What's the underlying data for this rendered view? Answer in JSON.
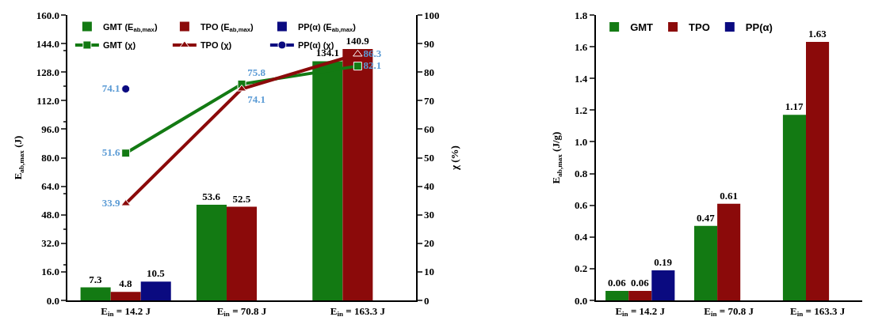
{
  "chart_data": [
    {
      "type": "bar",
      "categories": [
        "E$_{in}$ = 14.2 J",
        "E$_{in}$ = 70.8 J",
        "E$_{in}$ = 163.3 J"
      ],
      "ylabel": "E$_{ab,max}$ (J)",
      "y2label": "χ (%)",
      "series": [
        {
          "name": "GMT (E$_{ab,max}$)",
          "color": "#137a13",
          "values": [
            7.3,
            53.6,
            134.1
          ]
        },
        {
          "name": "TPO (E$_{ab,max}$)",
          "color": "#8b0a0a",
          "values": [
            4.8,
            52.5,
            140.9
          ]
        },
        {
          "name": "PP(α) (E$_{ab,max}$)",
          "color": "#0a0a80",
          "values": [
            10.5,
            null,
            null
          ]
        },
        {
          "name": "GMT (χ)",
          "type": "line",
          "axis": "y2",
          "marker": "square",
          "color": "#137a13",
          "values": [
            51.6,
            75.8,
            82.1
          ]
        },
        {
          "name": "TPO (χ)",
          "type": "line",
          "axis": "y2",
          "marker": "triangle",
          "color": "#8b0a0a",
          "values": [
            33.9,
            74.1,
            86.3
          ]
        },
        {
          "name": "PP(α) (χ)",
          "type": "line",
          "axis": "y2",
          "marker": "circle",
          "color": "#0a0a80",
          "values": [
            74.1,
            null,
            null
          ]
        }
      ],
      "ylim": [
        0,
        160
      ],
      "yticks": [
        {
          "value": 0,
          "label": "0.0"
        },
        {
          "value": 16,
          "label": "16.0"
        },
        {
          "value": 32,
          "label": "32.0"
        },
        {
          "value": 48,
          "label": "48.0"
        },
        {
          "value": 64,
          "label": "64.0"
        },
        {
          "value": 80,
          "label": "80.0"
        },
        {
          "value": 96,
          "label": "96.0"
        },
        {
          "value": 112,
          "label": "112.0"
        },
        {
          "value": 128,
          "label": "128.0"
        },
        {
          "value": 144,
          "label": "144.0"
        },
        {
          "value": 160,
          "label": "160.0"
        }
      ],
      "y2lim": [
        0,
        100
      ],
      "y2ticks": [
        0,
        10,
        20,
        30,
        40,
        50,
        60,
        70,
        80,
        90,
        100
      ],
      "data_labels": true,
      "legend": "top left"
    },
    {
      "type": "bar",
      "categories": [
        "E$_{in}$ = 14.2 J",
        "E$_{in}$ = 70.8 J",
        "E$_{in}$ = 163.3 J"
      ],
      "ylabel": "E$_{ab,max}$ (J/g)",
      "series": [
        {
          "name": "GMT",
          "color": "#137a13",
          "values": [
            0.06,
            0.47,
            1.17
          ]
        },
        {
          "name": "TPO",
          "color": "#8b0a0a",
          "values": [
            0.06,
            0.61,
            1.63
          ]
        },
        {
          "name": "PP(α)",
          "color": "#0a0a80",
          "values": [
            0.19,
            null,
            null
          ]
        }
      ],
      "ylim": [
        0,
        1.8
      ],
      "yticks": [
        {
          "value": 0,
          "label": "0.0"
        },
        {
          "value": 0.2,
          "label": "0.2"
        },
        {
          "value": 0.4,
          "label": "0.4"
        },
        {
          "value": 0.6,
          "label": "0.6"
        },
        {
          "value": 0.8,
          "label": "0.8"
        },
        {
          "value": 1.0,
          "label": "1.0"
        },
        {
          "value": 1.2,
          "label": "1.2"
        },
        {
          "value": 1.4,
          "label": "1.4"
        },
        {
          "value": 1.6,
          "label": "1.6"
        },
        {
          "value": 1.8,
          "label": "1.8"
        }
      ],
      "data_labels": true,
      "legend": "top left"
    }
  ]
}
